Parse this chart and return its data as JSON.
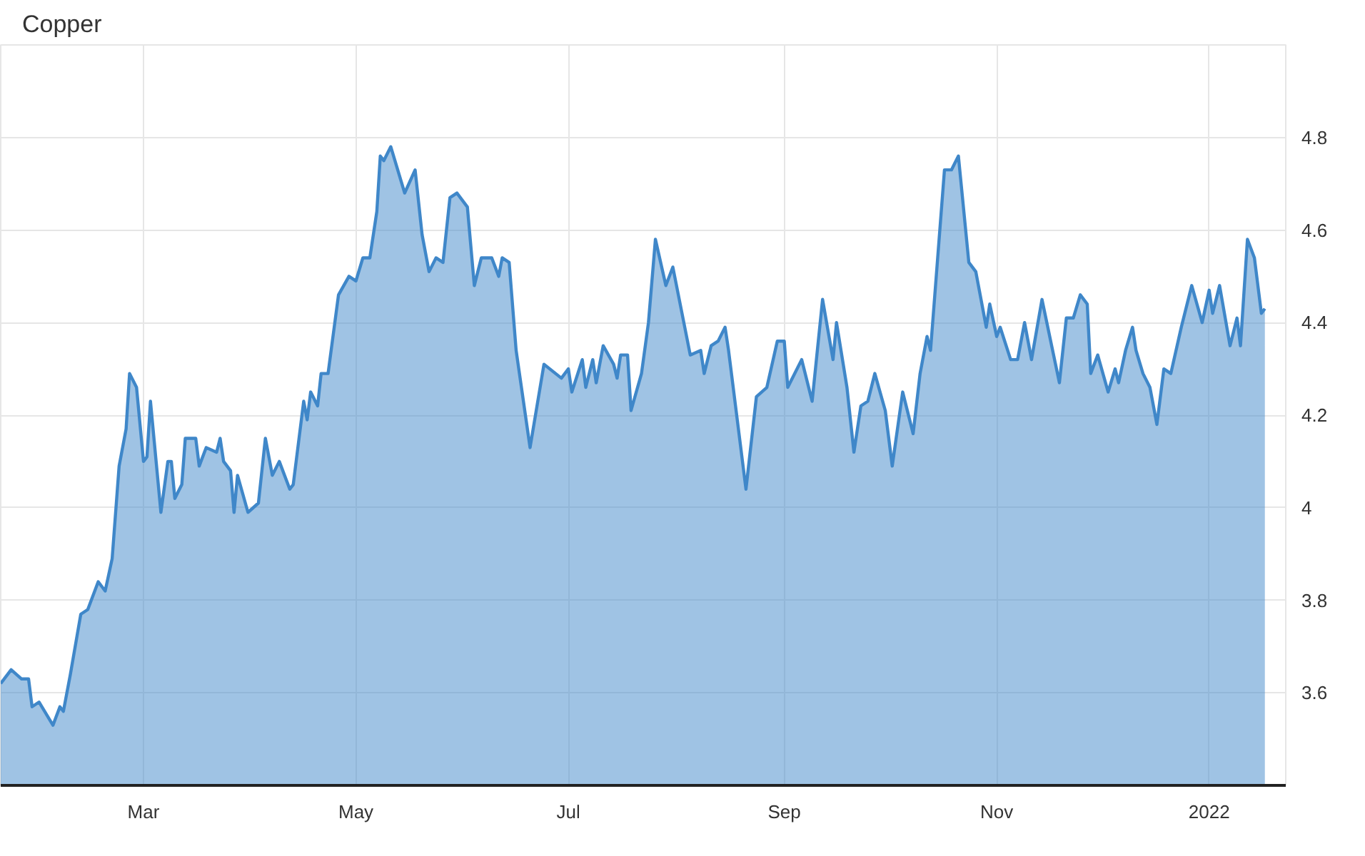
{
  "chart_data": {
    "type": "area",
    "title": "Copper",
    "x": [
      "2021-01-19",
      "2021-01-22",
      "2021-01-25",
      "2021-01-27",
      "2021-01-28",
      "2021-01-30",
      "2021-02-03",
      "2021-02-05",
      "2021-02-06",
      "2021-02-08",
      "2021-02-11",
      "2021-02-13",
      "2021-02-16",
      "2021-02-18",
      "2021-02-20",
      "2021-02-22",
      "2021-02-24",
      "2021-02-25",
      "2021-02-27",
      "2021-03-01",
      "2021-03-02",
      "2021-03-03",
      "2021-03-06",
      "2021-03-08",
      "2021-03-09",
      "2021-03-10",
      "2021-03-12",
      "2021-03-13",
      "2021-03-16",
      "2021-03-17",
      "2021-03-19",
      "2021-03-22",
      "2021-03-23",
      "2021-03-24",
      "2021-03-26",
      "2021-03-27",
      "2021-03-28",
      "2021-03-31",
      "2021-04-03",
      "2021-04-05",
      "2021-04-07",
      "2021-04-09",
      "2021-04-12",
      "2021-04-13",
      "2021-04-16",
      "2021-04-17",
      "2021-04-18",
      "2021-04-20",
      "2021-04-21",
      "2021-04-23",
      "2021-04-26",
      "2021-04-29",
      "2021-05-01",
      "2021-05-03",
      "2021-05-05",
      "2021-05-07",
      "2021-05-08",
      "2021-05-09",
      "2021-05-11",
      "2021-05-15",
      "2021-05-18",
      "2021-05-20",
      "2021-05-22",
      "2021-05-24",
      "2021-05-26",
      "2021-05-28",
      "2021-05-30",
      "2021-06-02",
      "2021-06-04",
      "2021-06-06",
      "2021-06-09",
      "2021-06-11",
      "2021-06-12",
      "2021-06-14",
      "2021-06-16",
      "2021-06-20",
      "2021-06-24",
      "2021-06-29",
      "2021-07-01",
      "2021-07-02",
      "2021-07-05",
      "2021-07-06",
      "2021-07-08",
      "2021-07-09",
      "2021-07-11",
      "2021-07-14",
      "2021-07-15",
      "2021-07-16",
      "2021-07-18",
      "2021-07-19",
      "2021-07-22",
      "2021-07-24",
      "2021-07-26",
      "2021-07-29",
      "2021-07-31",
      "2021-08-05",
      "2021-08-08",
      "2021-08-09",
      "2021-08-11",
      "2021-08-13",
      "2021-08-15",
      "2021-08-16",
      "2021-08-21",
      "2021-08-24",
      "2021-08-27",
      "2021-08-30",
      "2021-09-01",
      "2021-09-02",
      "2021-09-06",
      "2021-09-09",
      "2021-09-12",
      "2021-09-15",
      "2021-09-16",
      "2021-09-19",
      "2021-09-21",
      "2021-09-23",
      "2021-09-25",
      "2021-09-27",
      "2021-09-30",
      "2021-10-02",
      "2021-10-05",
      "2021-10-08",
      "2021-10-10",
      "2021-10-12",
      "2021-10-13",
      "2021-10-17",
      "2021-10-19",
      "2021-10-21",
      "2021-10-24",
      "2021-10-26",
      "2021-10-29",
      "2021-10-30",
      "2021-11-01",
      "2021-11-02",
      "2021-11-05",
      "2021-11-07",
      "2021-11-09",
      "2021-11-11",
      "2021-11-14",
      "2021-11-19",
      "2021-11-21",
      "2021-11-23",
      "2021-11-25",
      "2021-11-27",
      "2021-11-28",
      "2021-11-30",
      "2021-12-03",
      "2021-12-05",
      "2021-12-06",
      "2021-12-08",
      "2021-12-10",
      "2021-12-11",
      "2021-12-13",
      "2021-12-15",
      "2021-12-17",
      "2021-12-19",
      "2021-12-21",
      "2021-12-24",
      "2021-12-27",
      "2021-12-30",
      "2022-01-01",
      "2022-01-02",
      "2022-01-04",
      "2022-01-07",
      "2022-01-09",
      "2022-01-10",
      "2022-01-12",
      "2022-01-14",
      "2022-01-16",
      "2022-01-17"
    ],
    "series": [
      {
        "color": "#3f87c9",
        "values": [
          3.62,
          3.65,
          3.63,
          3.63,
          3.57,
          3.58,
          3.53,
          3.57,
          3.56,
          3.64,
          3.77,
          3.78,
          3.84,
          3.82,
          3.89,
          4.09,
          4.17,
          4.29,
          4.26,
          4.1,
          4.11,
          4.23,
          3.99,
          4.1,
          4.1,
          4.02,
          4.05,
          4.15,
          4.15,
          4.09,
          4.13,
          4.12,
          4.15,
          4.1,
          4.08,
          3.99,
          4.07,
          3.99,
          4.01,
          4.15,
          4.07,
          4.1,
          4.04,
          4.05,
          4.23,
          4.19,
          4.25,
          4.22,
          4.29,
          4.29,
          4.46,
          4.5,
          4.49,
          4.54,
          4.54,
          4.64,
          4.76,
          4.75,
          4.78,
          4.68,
          4.73,
          4.59,
          4.51,
          4.54,
          4.53,
          4.67,
          4.68,
          4.65,
          4.48,
          4.54,
          4.54,
          4.5,
          4.54,
          4.53,
          4.34,
          4.13,
          4.31,
          4.28,
          4.3,
          4.25,
          4.32,
          4.26,
          4.32,
          4.27,
          4.35,
          4.31,
          4.28,
          4.33,
          4.33,
          4.21,
          4.29,
          4.4,
          4.58,
          4.48,
          4.52,
          4.33,
          4.34,
          4.29,
          4.35,
          4.36,
          4.39,
          4.34,
          4.04,
          4.24,
          4.26,
          4.36,
          4.36,
          4.26,
          4.32,
          4.23,
          4.45,
          4.32,
          4.4,
          4.26,
          4.12,
          4.22,
          4.23,
          4.29,
          4.21,
          4.09,
          4.25,
          4.16,
          4.29,
          4.37,
          4.34,
          4.73,
          4.73,
          4.76,
          4.53,
          4.51,
          4.39,
          4.44,
          4.37,
          4.39,
          4.32,
          4.32,
          4.4,
          4.32,
          4.45,
          4.27,
          4.41,
          4.41,
          4.46,
          4.44,
          4.29,
          4.33,
          4.25,
          4.3,
          4.27,
          4.34,
          4.39,
          4.34,
          4.29,
          4.26,
          4.18,
          4.3,
          4.29,
          4.39,
          4.48,
          4.4,
          4.47,
          4.42,
          4.48,
          4.35,
          4.41,
          4.35,
          4.58,
          4.54,
          4.42,
          4.43
        ]
      }
    ],
    "xlim": [
      "2021-01-19",
      "2022-01-23"
    ],
    "xticks": [
      {
        "value": "2021-03-01",
        "label": "Mar"
      },
      {
        "value": "2021-05-01",
        "label": "May"
      },
      {
        "value": "2021-07-01",
        "label": "Jul"
      },
      {
        "value": "2021-09-01",
        "label": "Sep"
      },
      {
        "value": "2021-11-01",
        "label": "Nov"
      },
      {
        "value": "2022-01-01",
        "label": "2022"
      }
    ],
    "ylim": [
      3.4,
      5.0
    ],
    "yticks": [
      3.6,
      3.8,
      4,
      4.2,
      4.4,
      4.6,
      4.8
    ],
    "grid": true
  }
}
